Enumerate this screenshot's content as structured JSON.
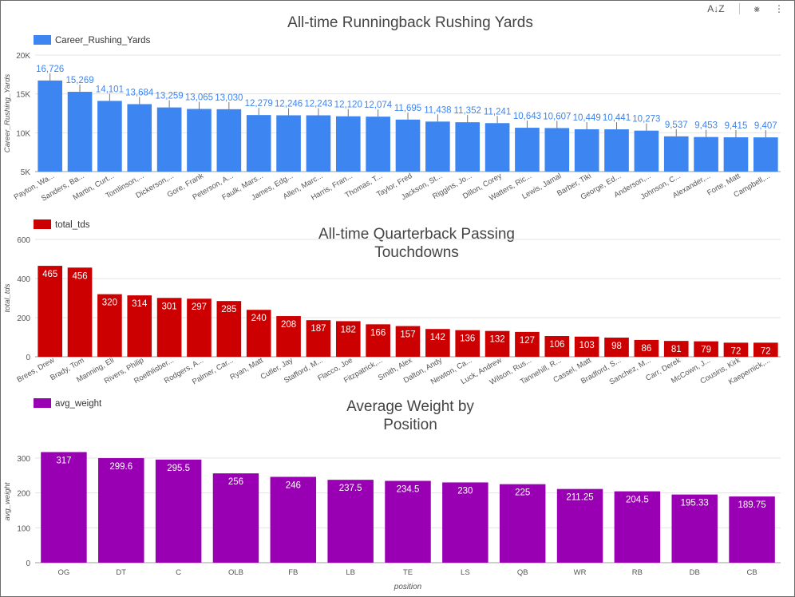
{
  "toolbar": {
    "sort_icon": "sort-az-icon",
    "filter_icon": "filter-off-icon",
    "more_icon": "more-vert-icon",
    "sort_glyph": "A↓Z",
    "filter_glyph": "⨳",
    "more_glyph": "⋮"
  },
  "chart_data": [
    {
      "type": "bar",
      "title": "All-time Runningback Rushing Yards",
      "legend": "Career_Rushing_Yards",
      "ylabel": "Career_Rushing_Yards",
      "xlabel": "",
      "color": "#3d85f0",
      "label_color": "#3d85f0",
      "ylim": [
        5000,
        20000
      ],
      "yticks": [
        5000,
        10000,
        15000,
        20000
      ],
      "ytick_labels": [
        "5K",
        "10K",
        "15K",
        "20K"
      ],
      "categories": [
        "Payton, Wa...",
        "Sanders, Ba...",
        "Martin, Curt...",
        "Tomlinson,...",
        "Dickerson,...",
        "Gore, Frank",
        "Peterson, A...",
        "Faulk, Mars...",
        "James, Edg...",
        "Allen, Marc...",
        "Harris, Fran...",
        "Thomas, T...",
        "Taylor, Fred",
        "Jackson, St...",
        "Riggins, Jo...",
        "Dillon, Corey",
        "Watters, Ric...",
        "Lewis, Jamal",
        "Barber, Tiki",
        "George, Ed...",
        "Anderson,...",
        "Johnson, C...",
        "Alexander,...",
        "Forte, Matt",
        "Campbell,..."
      ],
      "values": [
        16726,
        15269,
        14101,
        13684,
        13259,
        13065,
        13030,
        12279,
        12246,
        12243,
        12120,
        12074,
        11695,
        11438,
        11352,
        11241,
        10643,
        10607,
        10449,
        10441,
        10273,
        9537,
        9453,
        9415,
        9407
      ],
      "value_labels": [
        "16,726",
        "15,269",
        "14,101",
        "13,684",
        "13,259",
        "13,065",
        "13,030",
        "12,279",
        "12,246",
        "12,243",
        "12,120",
        "12,074",
        "11,695",
        "11,438",
        "11,352",
        "11,241",
        "10,643",
        "10,607",
        "10,449",
        "10,441",
        "10,273",
        "9,537",
        "9,453",
        "9,415",
        "9,407"
      ],
      "grid": true,
      "legend_position": "top-left"
    },
    {
      "type": "bar",
      "title": "All-time Quarterback Passing Touchdowns",
      "title_lines": [
        "All-time Quarterback Passing",
        "Touchdowns"
      ],
      "legend": "total_tds",
      "ylabel": "total_tds",
      "xlabel": "",
      "color": "#cc0000",
      "label_color": "#ffffff",
      "ylim": [
        0,
        600
      ],
      "yticks": [
        0,
        200,
        400,
        600
      ],
      "ytick_labels": [
        "0",
        "200",
        "400",
        "600"
      ],
      "categories": [
        "Brees, Drew",
        "Brady, Tom",
        "Manning, Eli",
        "Rivers, Philip",
        "Roethlisber...",
        "Rodgers, A...",
        "Palmer, Car...",
        "Ryan, Matt",
        "Cutler, Jay",
        "Stafford, M...",
        "Flacco, Joe",
        "Fitzpatrick,...",
        "Smith, Alex",
        "Dalton, Andy",
        "Newton, Ca...",
        "Luck, Andrew",
        "Wilson, Rus...",
        "Tannehill, R...",
        "Cassel, Matt",
        "Bradford, S...",
        "Sanchez, M...",
        "Carr, Derek",
        "McCown, J...",
        "Cousins, Kirk",
        "Kaepernick,..."
      ],
      "values": [
        465,
        456,
        320,
        314,
        301,
        297,
        285,
        240,
        208,
        187,
        182,
        166,
        157,
        142,
        136,
        132,
        127,
        106,
        103,
        98,
        86,
        81,
        79,
        72,
        72
      ],
      "value_labels": [
        "465",
        "456",
        "320",
        "314",
        "301",
        "297",
        "285",
        "240",
        "208",
        "187",
        "182",
        "166",
        "157",
        "142",
        "136",
        "132",
        "127",
        "106",
        "103",
        "98",
        "86",
        "81",
        "79",
        "72",
        "72"
      ],
      "grid": true,
      "legend_position": "top-left"
    },
    {
      "type": "bar",
      "title": "Average Weight by Position",
      "title_lines": [
        "Average Weight by",
        "Position"
      ],
      "legend": "avg_weight",
      "ylabel": "avg_weight",
      "xlabel": "position",
      "color": "#9900b3",
      "label_color": "#ffffff",
      "ylim": [
        0,
        350
      ],
      "yticks": [
        0,
        100,
        200,
        300
      ],
      "ytick_labels": [
        "0",
        "100",
        "200",
        "300"
      ],
      "categories": [
        "OG",
        "DT",
        "C",
        "OLB",
        "FB",
        "LB",
        "TE",
        "LS",
        "QB",
        "WR",
        "RB",
        "DB",
        "CB"
      ],
      "values": [
        317,
        299.6,
        295.5,
        256,
        246,
        237.5,
        234.5,
        230,
        225,
        211.25,
        204.5,
        195.33,
        189.75
      ],
      "value_labels": [
        "317",
        "299.6",
        "295.5",
        "256",
        "246",
        "237.5",
        "234.5",
        "230",
        "225",
        "211.25",
        "204.5",
        "195.33",
        "189.75"
      ],
      "grid": true,
      "legend_position": "top-left"
    }
  ]
}
